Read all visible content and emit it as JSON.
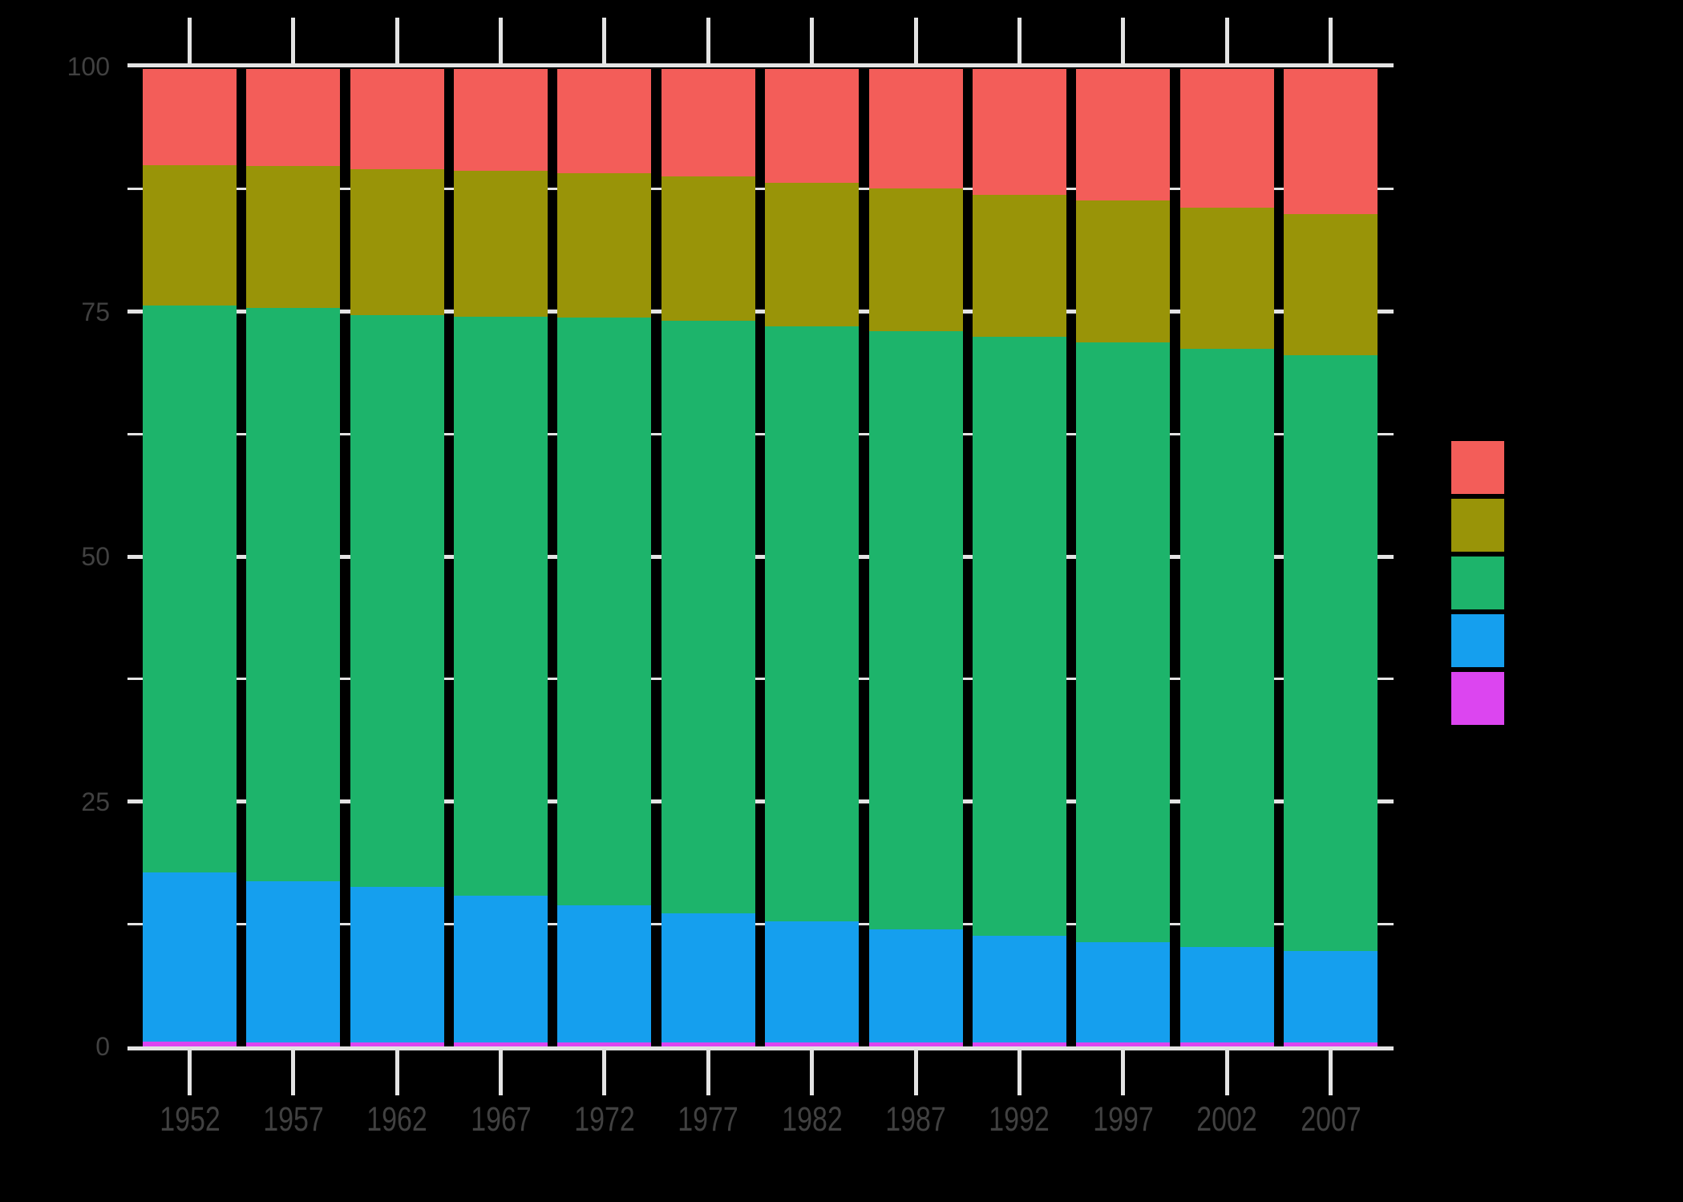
{
  "figure": {
    "background_color": "#000000"
  },
  "chart_data": {
    "type": "bar",
    "variant": "stacked-percent",
    "orientation": "vertical",
    "categories": [
      "1952",
      "1957",
      "1962",
      "1967",
      "1972",
      "1977",
      "1982",
      "1987",
      "1992",
      "1997",
      "2002",
      "2007"
    ],
    "series": [
      {
        "name": "salmon",
        "color": "#F35D59",
        "values": [
          9.87,
          9.94,
          10.23,
          10.43,
          10.63,
          11.02,
          11.64,
          12.26,
          12.9,
          13.49,
          14.16,
          14.87
        ]
      },
      {
        "name": "olive",
        "color": "#999408",
        "values": [
          14.34,
          14.5,
          14.95,
          14.95,
          14.81,
          14.71,
          14.7,
          14.56,
          14.47,
          14.45,
          14.44,
          14.38
        ]
      },
      {
        "name": "green",
        "color": "#1DB46B",
        "values": [
          57.97,
          58.68,
          58.51,
          59.24,
          60.15,
          60.69,
          60.87,
          61.22,
          61.32,
          61.36,
          61.2,
          60.99
        ]
      },
      {
        "name": "blue",
        "color": "#159FEE",
        "values": [
          17.37,
          16.44,
          15.88,
          14.96,
          14.0,
          13.16,
          12.39,
          11.58,
          10.92,
          10.32,
          9.82,
          9.38
        ]
      },
      {
        "name": "magenta",
        "color": "#DC45F0",
        "values": [
          0.44,
          0.44,
          0.43,
          0.43,
          0.42,
          0.41,
          0.4,
          0.39,
          0.39,
          0.38,
          0.38,
          0.37
        ]
      }
    ],
    "stack_order": "first-series-on-top",
    "x_tick_labels": [
      "1952",
      "1957",
      "1962",
      "1967",
      "1972",
      "1977",
      "1982",
      "1987",
      "1992",
      "1997",
      "2002",
      "2007"
    ],
    "y_tick_labels": [
      "0",
      "25",
      "50",
      "75",
      "100"
    ],
    "y_major_gridlines": [
      0,
      25,
      50,
      75,
      100
    ],
    "y_minor_gridlines": [
      12.5,
      37.5,
      62.5,
      87.5
    ],
    "ylim": [
      -5,
      105
    ],
    "grid": {
      "on": true,
      "color": "#E4E4E4"
    },
    "axis_text_color": "#414141",
    "legend": {
      "position": "right-center",
      "swatch_colors": [
        "#F35D59",
        "#999408",
        "#1DB46B",
        "#159FEE",
        "#DC45F0"
      ],
      "labels_visible": false
    }
  }
}
